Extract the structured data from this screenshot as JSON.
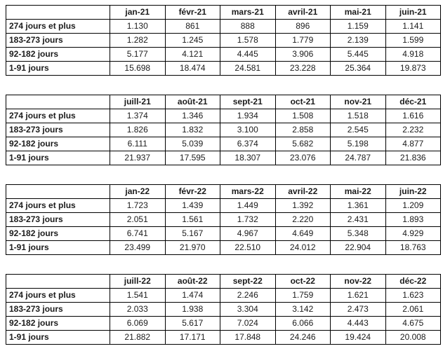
{
  "chart_data": [
    {
      "type": "table",
      "columns": [
        "jan-21",
        "févr-21",
        "mars-21",
        "avril-21",
        "mai-21",
        "juin-21"
      ],
      "rows": [
        {
          "label": "274 jours et plus",
          "values": [
            "1.130",
            "861",
            "888",
            "896",
            "1.159",
            "1.141"
          ]
        },
        {
          "label": "183-273 jours",
          "values": [
            "1.282",
            "1.245",
            "1.578",
            "1.779",
            "2.139",
            "1.599"
          ]
        },
        {
          "label": "92-182 jours",
          "values": [
            "5.177",
            "4.121",
            "4.445",
            "3.906",
            "5.445",
            "4.918"
          ]
        },
        {
          "label": "1-91 jours",
          "values": [
            "15.698",
            "18.474",
            "24.581",
            "23.228",
            "25.364",
            "19.873"
          ]
        }
      ]
    },
    {
      "type": "table",
      "columns": [
        "juill-21",
        "août-21",
        "sept-21",
        "oct-21",
        "nov-21",
        "déc-21"
      ],
      "rows": [
        {
          "label": "274 jours et plus",
          "values": [
            "1.374",
            "1.346",
            "1.934",
            "1.508",
            "1.518",
            "1.616"
          ]
        },
        {
          "label": "183-273 jours",
          "values": [
            "1.826",
            "1.832",
            "3.100",
            "2.858",
            "2.545",
            "2.232"
          ]
        },
        {
          "label": "92-182 jours",
          "values": [
            "6.111",
            "5.039",
            "6.374",
            "5.682",
            "5.198",
            "4.877"
          ]
        },
        {
          "label": "1-91 jours",
          "values": [
            "21.937",
            "17.595",
            "18.307",
            "23.076",
            "24.787",
            "21.836"
          ]
        }
      ]
    },
    {
      "type": "table",
      "columns": [
        "jan-22",
        "févr-22",
        "mars-22",
        "avril-22",
        "mai-22",
        "juin-22"
      ],
      "rows": [
        {
          "label": "274 jours et plus",
          "values": [
            "1.723",
            "1.439",
            "1.449",
            "1.392",
            "1.361",
            "1.209"
          ]
        },
        {
          "label": "183-273 jours",
          "values": [
            "2.051",
            "1.561",
            "1.732",
            "2.220",
            "2.431",
            "1.893"
          ]
        },
        {
          "label": "92-182 jours",
          "values": [
            "6.741",
            "5.167",
            "4.967",
            "4.649",
            "5.348",
            "4.929"
          ]
        },
        {
          "label": "1-91 jours",
          "values": [
            "23.499",
            "21.970",
            "22.510",
            "24.012",
            "22.904",
            "18.763"
          ]
        }
      ]
    },
    {
      "type": "table",
      "columns": [
        "juill-22",
        "août-22",
        "sept-22",
        "oct-22",
        "nov-22",
        "déc-22"
      ],
      "rows": [
        {
          "label": "274 jours et plus",
          "values": [
            "1.541",
            "1.474",
            "2.246",
            "1.759",
            "1.621",
            "1.623"
          ]
        },
        {
          "label": "183-273 jours",
          "values": [
            "2.033",
            "1.938",
            "3.304",
            "3.142",
            "2.473",
            "2.061"
          ]
        },
        {
          "label": "92-182 jours",
          "values": [
            "6.069",
            "5.617",
            "7.024",
            "6.066",
            "4.443",
            "4.675"
          ]
        },
        {
          "label": "1-91 jours",
          "values": [
            "21.882",
            "17.171",
            "17.848",
            "24.246",
            "19.424",
            "20.008"
          ]
        }
      ]
    }
  ],
  "style": {
    "border_color": "#000000",
    "text_color": "#1b1b1b",
    "background_color": "#ffffff"
  }
}
